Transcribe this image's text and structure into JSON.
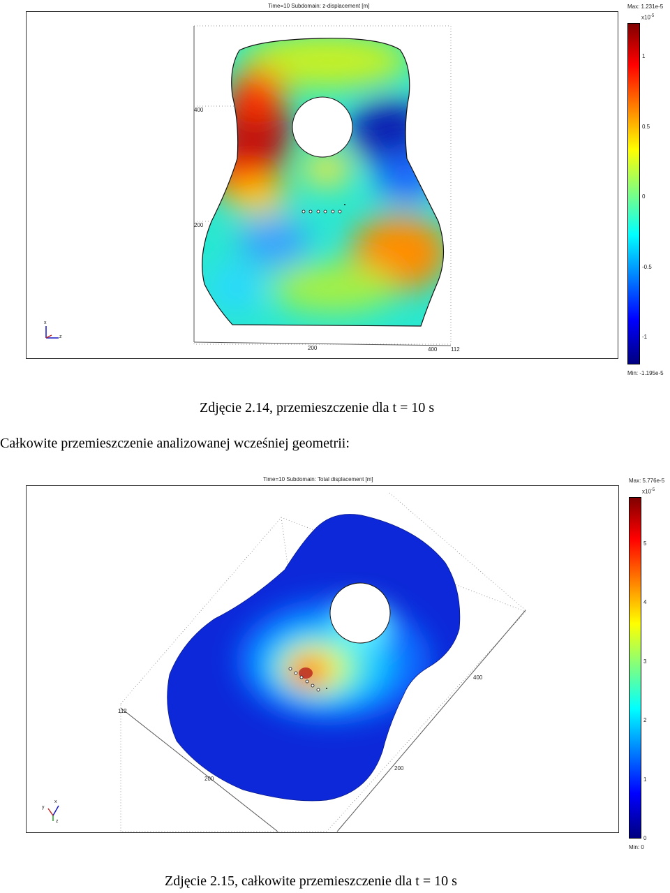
{
  "figure1": {
    "plot_title": "Time=10    Subdomain: z-displacement [m]",
    "colorbar": {
      "max_label": "Max: 1.231e-5",
      "min_label": "Min: -1.195e-5",
      "exponent_base": "x10",
      "exponent_power": "-5",
      "ticks": [
        "1",
        "0.5",
        "0",
        "-0.5",
        "-1"
      ]
    },
    "axis_ticks": {
      "left": [
        "400",
        "200"
      ],
      "bottom": [
        "200",
        "400",
        "112"
      ]
    },
    "triad": {
      "up": "x",
      "right": "z"
    },
    "caption": "Zdjęcie 2.14, przemieszczenie dla t = 10 s"
  },
  "body_text": "Całkowite przemieszczenie analizowanej wcześniej geometrii:",
  "figure2": {
    "plot_title": "Time=10    Subdomain: Total displacement [m]",
    "colorbar": {
      "max_label": "Max: 5.776e-5",
      "min_label": "Min: 0",
      "exponent_base": "x10",
      "exponent_power": "-5",
      "ticks": [
        "5",
        "4",
        "3",
        "2",
        "1",
        "0"
      ]
    },
    "axis_ticks": [
      "400",
      "112",
      "200",
      "200"
    ],
    "triad": {
      "x": "x",
      "y": "y",
      "z": "z"
    },
    "caption": "Zdjęcie 2.15, całkowite przemieszczenie dla t = 10 s"
  },
  "colors": {
    "jet_dark_red": "#800000",
    "jet_red": "#ff0000",
    "jet_yellow": "#ffff00",
    "jet_cyan": "#00ffff",
    "jet_blue": "#0000ff",
    "jet_dark_blue": "#000080"
  }
}
